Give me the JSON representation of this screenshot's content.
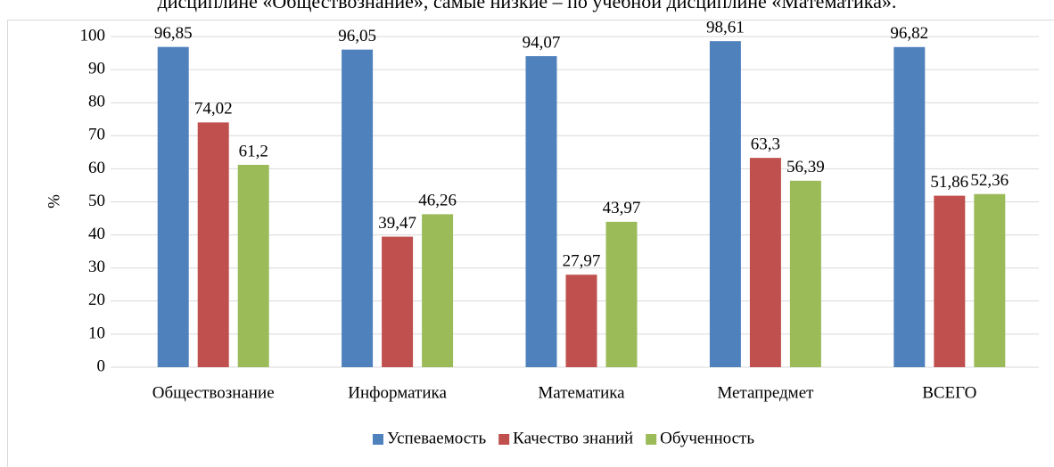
{
  "text": "дисциплине «Обществознание», самые низкие – по учебной дисциплине «Математика».",
  "chart_data": {
    "type": "bar",
    "ylabel": "%",
    "categories": [
      "Обществознание",
      "Информатика",
      "Математика",
      "Метапредмет",
      "ВСЕГО"
    ],
    "series": [
      {
        "name": "Успеваемость",
        "color": "#4f81bd",
        "values": [
          96.85,
          96.05,
          94.07,
          98.61,
          96.82
        ],
        "value_labels": [
          "96,85",
          "96,05",
          "94,07",
          "98,61",
          "96,82"
        ]
      },
      {
        "name": "Качество знаний",
        "color": "#c0504d",
        "values": [
          74.02,
          39.47,
          27.97,
          63.3,
          51.86
        ],
        "value_labels": [
          "74,02",
          "39,47",
          "27,97",
          "63,3",
          "51,86"
        ]
      },
      {
        "name": "Обученность",
        "color": "#9bbb59",
        "values": [
          61.2,
          46.26,
          43.97,
          56.39,
          52.36
        ],
        "value_labels": [
          "61,2",
          "46,26",
          "43,97",
          "56,39",
          "52,36"
        ]
      }
    ],
    "ylim": [
      0,
      100
    ],
    "yticks": [
      0,
      10,
      20,
      30,
      40,
      50,
      60,
      70,
      80,
      90,
      100
    ],
    "grid": true,
    "legend": "bottom"
  }
}
